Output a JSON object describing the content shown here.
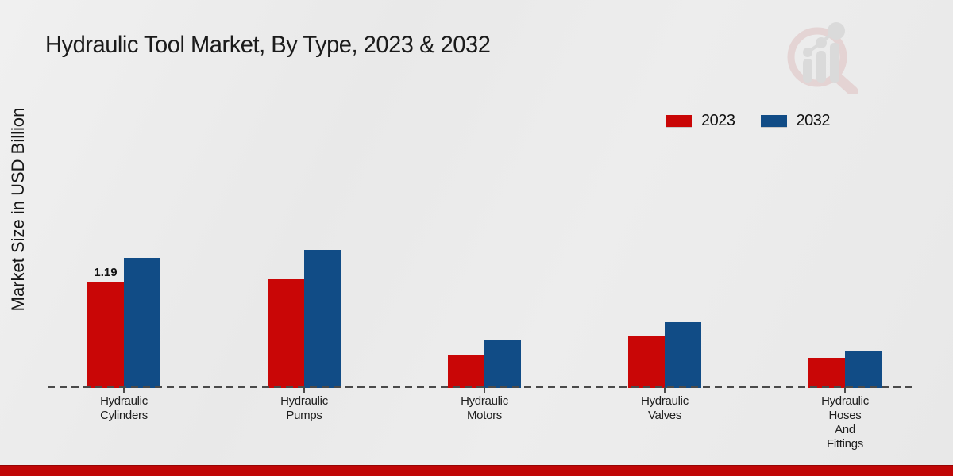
{
  "title": "Hydraulic Tool Market, By Type, 2023 & 2032",
  "y_axis_label": "Market Size in USD Billion",
  "watermark_icon": "bar-chart-magnifier-logo",
  "colors": {
    "series_2023": "#c90606",
    "series_2032": "#114c86",
    "baseline": "#4a4a4a",
    "footer_band": "#c00606",
    "background": "#ebebeb",
    "title_text": "#1b1b1b"
  },
  "chart_data": {
    "type": "bar",
    "title": "Hydraulic Tool Market, By Type, 2023 & 2032",
    "xlabel": "",
    "ylabel": "Market Size in USD Billion",
    "categories": [
      "Hydraulic\nCylinders",
      "Hydraulic\nPumps",
      "Hydraulic\nMotors",
      "Hydraulic\nValves",
      "Hydraulic\nHoses\nAnd\nFittings"
    ],
    "series": [
      {
        "name": "2023",
        "color": "#c90606",
        "values": [
          1.19,
          1.23,
          0.38,
          0.59,
          0.34
        ]
      },
      {
        "name": "2032",
        "color": "#114c86",
        "values": [
          1.47,
          1.56,
          0.54,
          0.74,
          0.42
        ]
      }
    ],
    "bar_labels": [
      {
        "series_index": 0,
        "category_index": 0,
        "text": "1.19"
      }
    ],
    "ylim": [
      0,
      1.7
    ],
    "grid": false,
    "y_tick_labels_visible": false,
    "legend_position": "top-right",
    "baseline_style": "dashed"
  }
}
